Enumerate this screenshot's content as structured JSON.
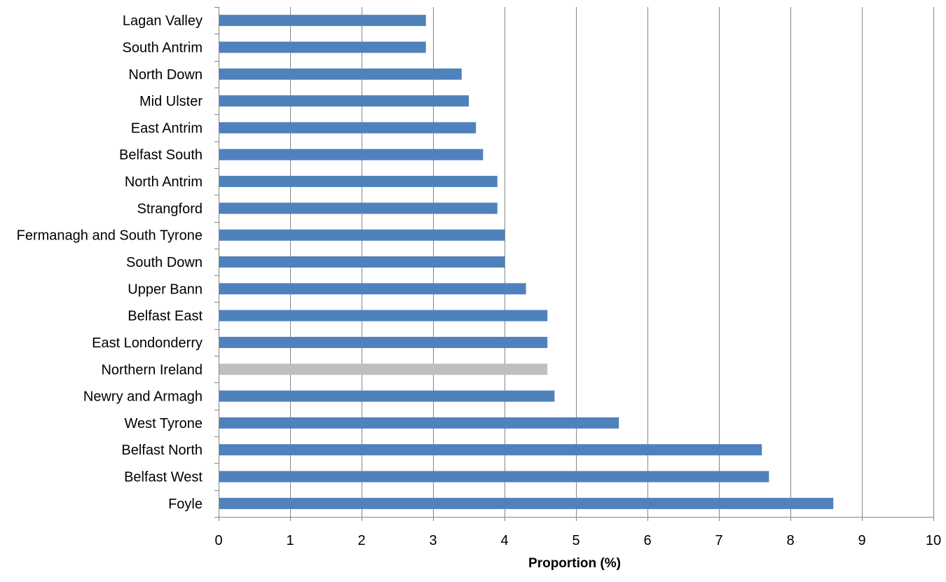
{
  "chart_data": {
    "type": "bar",
    "orientation": "horizontal",
    "title": "",
    "xlabel": "Proportion (%)",
    "ylabel": "",
    "xlim": [
      0,
      10
    ],
    "x_ticks": [
      "0",
      "1",
      "2",
      "3",
      "4",
      "5",
      "6",
      "7",
      "8",
      "9",
      "10"
    ],
    "grid": "vertical",
    "categories": [
      "Lagan Valley",
      "South Antrim",
      "North Down",
      "Mid Ulster",
      "East Antrim",
      "Belfast South",
      "North Antrim",
      "Strangford",
      "Fermanagh and South Tyrone",
      "South Down",
      "Upper Bann",
      "Belfast East",
      "East Londonderry",
      "Northern Ireland",
      "Newry and Armagh",
      "West Tyrone",
      "Belfast North",
      "Belfast West",
      "Foyle"
    ],
    "values": [
      2.9,
      2.9,
      3.4,
      3.5,
      3.6,
      3.7,
      3.9,
      3.9,
      4.0,
      4.0,
      4.3,
      4.6,
      4.6,
      4.6,
      4.7,
      5.6,
      7.6,
      7.7,
      8.6
    ],
    "highlight_category": "Northern Ireland",
    "colors": {
      "bar": "#4f81bd",
      "highlight": "#bfbfbf",
      "grid": "#868686",
      "axis": "#868686"
    }
  }
}
